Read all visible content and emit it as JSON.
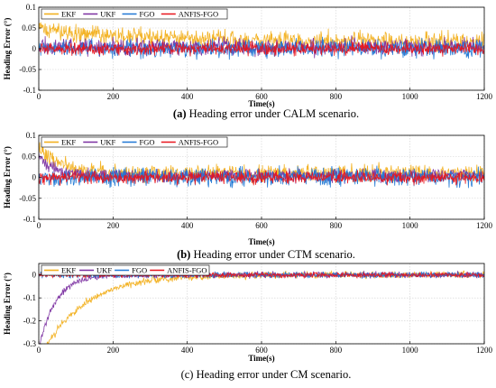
{
  "figure": {
    "charts": [
      {
        "id": "a",
        "caption_tag": "(a)",
        "caption_text": " Heading error under CALM scenario.",
        "caption_bold_tag": true
      },
      {
        "id": "b",
        "caption_tag": "(b)",
        "caption_text": " Heading error under CTM scenario.",
        "caption_bold_tag": true
      },
      {
        "id": "c",
        "caption_tag": "(c)",
        "caption_text": " Heading error under CM scenario.",
        "caption_bold_tag": false
      }
    ]
  },
  "chart_data": [
    {
      "type": "line",
      "title": "",
      "xlabel": "Time(s)",
      "ylabel": "Heading Error (°)",
      "xlim": [
        0,
        1200
      ],
      "ylim": [
        -0.1,
        0.1
      ],
      "xticks": [
        0,
        200,
        400,
        600,
        800,
        1000,
        1200
      ],
      "yticks": [
        -0.1,
        -0.05,
        0,
        0.05,
        0.1
      ],
      "ytick_labels": [
        "-0.1",
        "-0.05",
        "0",
        "0.05",
        "0.1"
      ],
      "grid": true,
      "legend_position": "top-left",
      "series": [
        {
          "name": "EKF",
          "color": "#f2b01e",
          "noise_amp": 0.032,
          "bias": 0.018,
          "transient_amp": 0.03,
          "transient_tau": 250
        },
        {
          "name": "UKF",
          "color": "#7b2fa0",
          "noise_amp": 0.03,
          "bias": 0.005,
          "transient_amp": 0.0,
          "transient_tau": 100
        },
        {
          "name": "FGO",
          "color": "#1f77d4",
          "noise_amp": 0.03,
          "bias": 0.0,
          "transient_amp": 0.0,
          "transient_tau": 100
        },
        {
          "name": "ANFIS-FGO",
          "color": "#e8141c",
          "noise_amp": 0.022,
          "bias": 0.0,
          "transient_amp": 0.0,
          "transient_tau": 100
        }
      ]
    },
    {
      "type": "line",
      "title": "",
      "xlabel": "Time(s)",
      "ylabel": "Heading Error (°)",
      "xlim": [
        0,
        1200
      ],
      "ylim": [
        -0.1,
        0.1
      ],
      "xticks": [
        0,
        200,
        400,
        600,
        800,
        1000,
        1200
      ],
      "yticks": [
        -0.1,
        -0.05,
        0,
        0.05,
        0.1
      ],
      "ytick_labels": [
        "-0.1",
        "-0.05",
        "0",
        "0.05",
        "0.1"
      ],
      "grid": true,
      "legend_position": "top-left",
      "series": [
        {
          "name": "EKF",
          "color": "#f2b01e",
          "noise_amp": 0.028,
          "bias": 0.01,
          "transient_amp": 0.06,
          "transient_tau": 60
        },
        {
          "name": "UKF",
          "color": "#7b2fa0",
          "noise_amp": 0.022,
          "bias": 0.004,
          "transient_amp": 0.05,
          "transient_tau": 40
        },
        {
          "name": "FGO",
          "color": "#1f77d4",
          "noise_amp": 0.032,
          "bias": 0.0,
          "transient_amp": 0.0,
          "transient_tau": 100
        },
        {
          "name": "ANFIS-FGO",
          "color": "#e8141c",
          "noise_amp": 0.022,
          "bias": 0.0,
          "transient_amp": 0.0,
          "transient_tau": 100
        }
      ]
    },
    {
      "type": "line",
      "title": "",
      "xlabel": "Time(s)",
      "ylabel": "Heading Error (°)",
      "xlim": [
        0,
        1200
      ],
      "ylim": [
        -0.3,
        0.05
      ],
      "xticks": [
        0,
        200,
        400,
        600,
        800,
        1000,
        1200
      ],
      "yticks": [
        -0.3,
        -0.2,
        -0.1,
        0
      ],
      "ytick_labels": [
        "-0.3",
        "-0.2",
        "-0.1",
        "0"
      ],
      "grid": true,
      "legend_position": "top-left",
      "series": [
        {
          "name": "EKF",
          "color": "#f2b01e",
          "noise_amp": 0.022,
          "bias": 0.0,
          "transient_amp": -0.38,
          "transient_tau": 110
        },
        {
          "name": "UKF",
          "color": "#7b2fa0",
          "noise_amp": 0.02,
          "bias": 0.0,
          "transient_amp": -0.32,
          "transient_tau": 45
        },
        {
          "name": "FGO",
          "color": "#1f77d4",
          "noise_amp": 0.018,
          "bias": 0.0,
          "transient_amp": 0.0,
          "transient_tau": 100
        },
        {
          "name": "ANFIS-FGO",
          "color": "#e8141c",
          "noise_amp": 0.016,
          "bias": 0.0,
          "transient_amp": 0.0,
          "transient_tau": 100
        }
      ]
    }
  ]
}
